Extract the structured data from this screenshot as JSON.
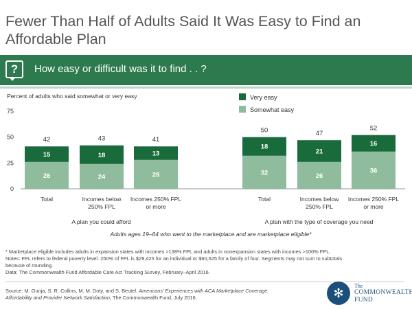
{
  "title": "Fewer Than Half of Adults Said It Was Easy to Find an Affordable Plan",
  "banner": {
    "icon": "question-speech-bubble-icon",
    "question": "How easy or difficult was it to find . . ?"
  },
  "colors": {
    "very_easy": "#1a6b3c",
    "somewhat_easy": "#8fbc9d",
    "banner": "#2e7a4f"
  },
  "chart_data": {
    "type": "bar",
    "stacked": true,
    "ylabel": "Percent of adults who said somewhat or very easy",
    "ylim": [
      0,
      75
    ],
    "yticks": [
      0,
      25,
      50,
      75
    ],
    "grid": false,
    "legend_position": "top-right",
    "categories": [
      "Total",
      "Incomes below 250% FPL",
      "Incomes 250% FPL or more",
      "Total",
      "Incomes below 250% FPL",
      "Incomes 250% FPL or more"
    ],
    "category_lines": [
      [
        "Total"
      ],
      [
        "Incomes below",
        "250% FPL"
      ],
      [
        "Incomes 250% FPL",
        "or more"
      ],
      [
        "Total"
      ],
      [
        "Incomes below",
        "250% FPL"
      ],
      [
        "Incomes 250% FPL",
        "or more"
      ]
    ],
    "groups": [
      {
        "label": "A plan you could afford",
        "indices": [
          0,
          1,
          2
        ]
      },
      {
        "label": "A plan with the type of coverage you need",
        "indices": [
          3,
          4,
          5
        ]
      }
    ],
    "series": [
      {
        "name": "Somewhat easy",
        "values": [
          26,
          24,
          28,
          32,
          26,
          36
        ]
      },
      {
        "name": "Very easy",
        "values": [
          15,
          18,
          13,
          18,
          21,
          16
        ]
      }
    ],
    "totals": [
      42,
      43,
      41,
      50,
      47,
      52
    ],
    "annotation": "Adults ages 19–64 who went to the marketplace and are marketplace eligible*"
  },
  "notes": [
    "* Marketplace eligible includes adults in expansion states with incomes >138% FPL and adults in nonexpansion states with incomes >100% FPL.",
    "Notes: FPL refers to federal poverty level. 250% of FPL is $29,425 for an individual or $60,625 for a family of four. Segments may not sum to subtotals",
    "because of rounding.",
    "Data: The Commonwealth Fund Affordable Care Act Tracking Survey, February–April 2016."
  ],
  "source": {
    "line1_prefix": "Source: M. Gunja, S. R. Collins, M. M. Doty, and S. Beutel, ",
    "line1_italic": "Americans’ Experiences with ACA Marketplace Coverage:",
    "line2_italic": "Affordability and Provider Network Satisfaction,",
    "line2_suffix": " The Commonwealth Fund, July 2016."
  },
  "logo": {
    "line1": "The",
    "line2": "COMMONWEALTH",
    "line3": "FUND",
    "icon": "snowflake-emblem-icon"
  }
}
